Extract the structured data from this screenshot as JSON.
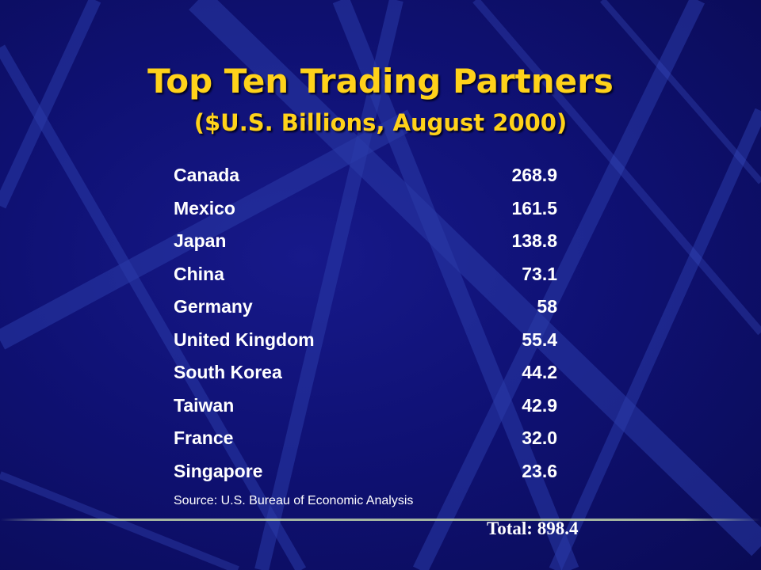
{
  "slide": {
    "title": "Top Ten Trading Partners",
    "subtitle": "($U.S. Billions, August 2000)",
    "colors": {
      "background": "#0f1174",
      "title": "#ffd21a",
      "text": "#ffffff"
    },
    "rows": [
      {
        "country": "Canada",
        "value": "268.9"
      },
      {
        "country": "Mexico",
        "value": "161.5"
      },
      {
        "country": "Japan",
        "value": "138.8"
      },
      {
        "country": "China",
        "value": "73.1"
      },
      {
        "country": "Germany",
        "value": "58"
      },
      {
        "country": "United Kingdom",
        "value": "55.4"
      },
      {
        "country": "South Korea",
        "value": "44.2"
      },
      {
        "country": "Taiwan",
        "value": "42.9"
      },
      {
        "country": "France",
        "value": "32.0"
      },
      {
        "country": "Singapore",
        "value": "23.6"
      }
    ],
    "source": "Source: U.S. Bureau of Economic Analysis",
    "total": "Total: 898.4"
  }
}
